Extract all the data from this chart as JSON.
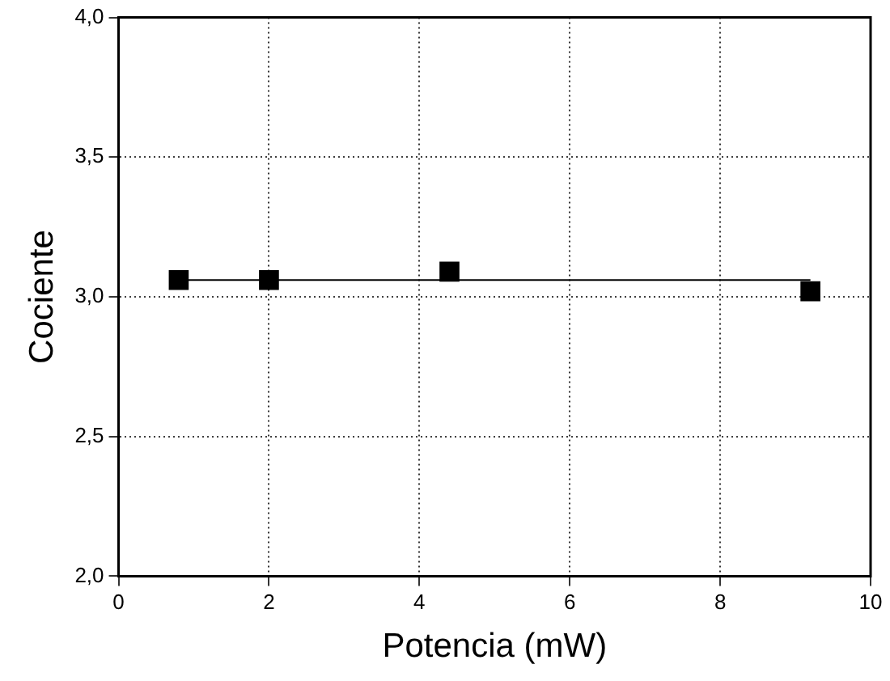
{
  "chart_data": {
    "type": "scatter",
    "xlabel": "Potencia (mW)",
    "ylabel": "Cociente",
    "x": [
      0.8,
      2.0,
      4.4,
      9.2
    ],
    "series": [
      {
        "color": "#000000",
        "values": [
          3.06,
          3.06,
          3.09,
          3.02
        ],
        "marker": "square"
      },
      {
        "type": "line",
        "color": "#000000",
        "x": [
          0.8,
          9.2
        ],
        "values": [
          3.06,
          3.06
        ],
        "marker": "none",
        "line_style": "solid"
      }
    ],
    "xlim": [
      0,
      10
    ],
    "xticks": [
      0,
      2,
      4,
      6,
      8,
      10
    ],
    "ylim": [
      2,
      4
    ],
    "yticks": [
      {
        "value": 2,
        "label": "2,0"
      },
      {
        "value": 2.5,
        "label": "2,5"
      },
      {
        "value": 3,
        "label": "3,0"
      },
      {
        "value": 3.5,
        "label": "3,5"
      },
      {
        "value": 4,
        "label": "4,0"
      }
    ],
    "grid": true,
    "legend": false
  }
}
